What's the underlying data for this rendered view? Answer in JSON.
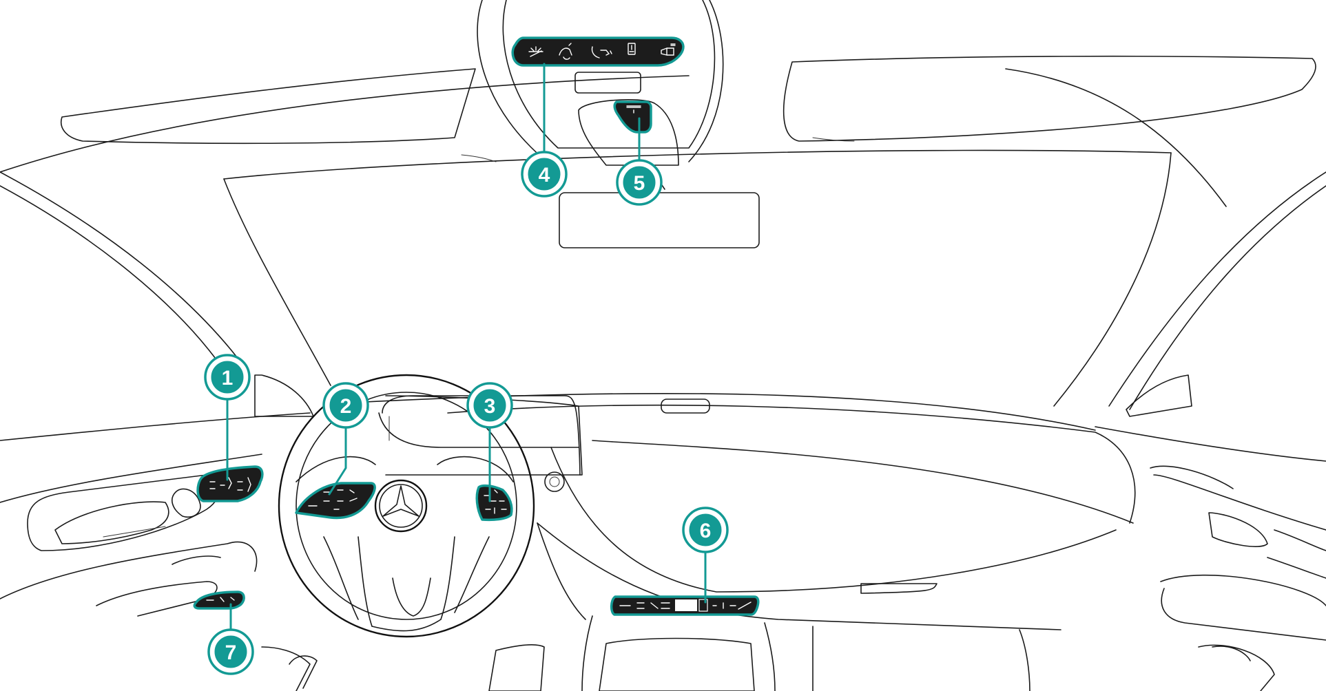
{
  "colors": {
    "accent": "#139a94",
    "control_fill": "#1c1c1c",
    "outline": "#1a1a1a",
    "background": "#ffffff"
  },
  "callouts": [
    {
      "number": "1",
      "target": "door-seat-controls"
    },
    {
      "number": "2",
      "target": "left-steering-wheel-buttons"
    },
    {
      "number": "3",
      "target": "right-steering-wheel-buttons"
    },
    {
      "number": "4",
      "target": "overhead-control-panel"
    },
    {
      "number": "5",
      "target": "overhead-sos-button"
    },
    {
      "number": "6",
      "target": "center-console-control-bar"
    },
    {
      "number": "7",
      "target": "light-switch-panel"
    }
  ],
  "icons": [
    "emblem-icon",
    "interior-light-icon",
    "reading-light-icon",
    "phone-call-icon",
    "battery-icon",
    "camera-icon"
  ]
}
